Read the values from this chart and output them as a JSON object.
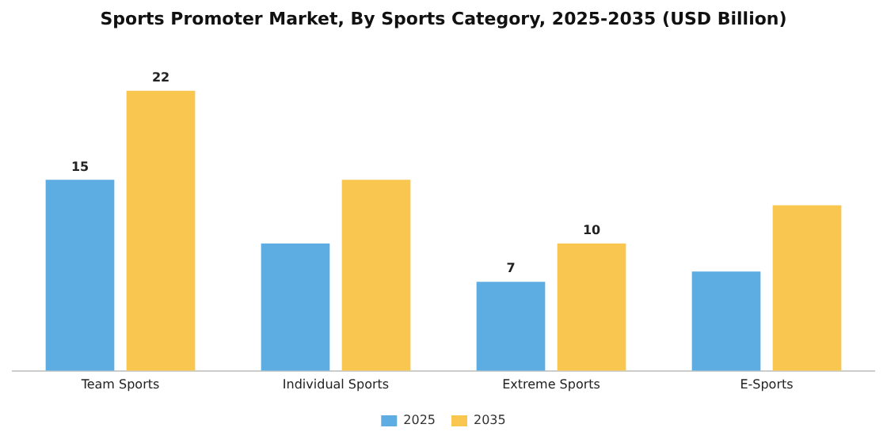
{
  "chart_data": {
    "type": "bar",
    "title": "Sports Promoter Market, By Sports Category, 2025-2035 (USD Billion)",
    "categories": [
      "Team Sports",
      "Individual Sports",
      "Extreme Sports",
      "E-Sports"
    ],
    "series": [
      {
        "name": "2025",
        "color": "#5dade2",
        "values": [
          15,
          10,
          7,
          7.8
        ],
        "value_labels": [
          "15",
          null,
          "7",
          null
        ]
      },
      {
        "name": "2035",
        "color": "#f9c74f",
        "values": [
          22,
          15,
          10,
          13
        ],
        "value_labels": [
          "22",
          null,
          "10",
          null
        ]
      }
    ],
    "legend": "bottom",
    "grid": false
  }
}
